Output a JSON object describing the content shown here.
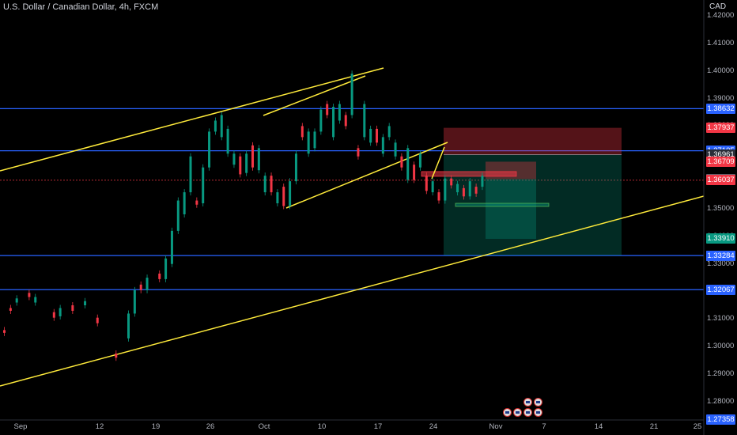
{
  "header": {
    "title": "U.S. Dollar / Canadian Dollar, 4h, FXCM",
    "currency": "CAD"
  },
  "chart_data": {
    "type": "candlestick",
    "ylim": [
      1.27,
      1.425
    ],
    "price_labels": [
      "1.42000",
      "1.41000",
      "1.40000",
      "1.39000",
      "1.38000",
      "1.37000",
      "1.36000",
      "1.35000",
      "1.34000",
      "1.33000",
      "1.32000",
      "1.31000",
      "1.30000",
      "1.29000",
      "1.28000"
    ],
    "date_labels": [
      "Sep",
      "12",
      "19",
      "26",
      "Oct",
      "10",
      "17",
      "24",
      "Nov",
      "7",
      "14",
      "21",
      "25"
    ],
    "horizontal_levels": [
      1.38632,
      1.37105,
      1.33303,
      1.32067
    ],
    "price_tags": [
      {
        "text": "1.38632",
        "color": "#2962ff"
      },
      {
        "text": "1.37937",
        "color": "#f23645"
      },
      {
        "text": "1.37105",
        "color": "#2962ff"
      },
      {
        "text": "1.36961",
        "color": "#2a2e39"
      },
      {
        "text": "1.36709",
        "color": "#f23645"
      },
      {
        "text": "1.36075",
        "color": "#5d606b"
      },
      {
        "text": "1.36037",
        "color": "#f23645"
      },
      {
        "text": "1.33910",
        "color": "#089981"
      },
      {
        "text": "1.33303",
        "color": "#2962ff"
      },
      {
        "text": "1.33284",
        "color": "#2962ff"
      },
      {
        "text": "1.32067",
        "color": "#2962ff"
      },
      {
        "text": "1.27358",
        "color": "#2962ff"
      }
    ],
    "colors": {
      "up": "#089981",
      "down": "#f23645",
      "level": "#2962ff",
      "trend": "#ffeb3b"
    },
    "candles_down": [
      [
        0,
        1.306,
        1.305
      ],
      [
        1,
        1.314,
        1.313
      ],
      [
        4,
        1.3195,
        1.318
      ],
      [
        8,
        1.3125,
        1.3105
      ],
      [
        11,
        1.315,
        1.313
      ],
      [
        15,
        1.3105,
        1.3085
      ],
      [
        18,
        1.2975,
        1.296
      ],
      [
        22,
        1.3225,
        1.3205
      ],
      [
        25,
        1.3265,
        1.3245
      ],
      [
        31,
        1.353,
        1.3515
      ],
      [
        38,
        1.369,
        1.3625
      ],
      [
        40,
        1.373,
        1.365
      ],
      [
        43,
        1.362,
        1.356
      ],
      [
        45,
        1.358,
        1.351
      ],
      [
        48,
        1.38,
        1.376
      ],
      [
        52,
        1.388,
        1.384
      ],
      [
        55,
        1.384,
        1.38
      ],
      [
        57,
        1.372,
        1.369
      ],
      [
        60,
        1.379,
        1.374
      ],
      [
        64,
        1.369,
        1.365
      ],
      [
        66,
        1.366,
        1.3605
      ],
      [
        68,
        1.362,
        1.3565
      ],
      [
        70,
        1.356,
        1.353
      ],
      [
        72,
        1.361,
        1.3585
      ],
      [
        74,
        1.3575,
        1.3545
      ],
      [
        76,
        1.358,
        1.3555
      ]
    ],
    "candles_up": [
      [
        2,
        1.316,
        1.3175
      ],
      [
        5,
        1.316,
        1.318
      ],
      [
        9,
        1.311,
        1.314
      ],
      [
        13,
        1.315,
        1.3165
      ],
      [
        20,
        1.303,
        1.312
      ],
      [
        21,
        1.312,
        1.3205
      ],
      [
        23,
        1.3205,
        1.325
      ],
      [
        26,
        1.3245,
        1.332
      ],
      [
        27,
        1.33,
        1.342
      ],
      [
        28,
        1.342,
        1.353
      ],
      [
        29,
        1.348,
        1.356
      ],
      [
        30,
        1.356,
        1.369
      ],
      [
        32,
        1.352,
        1.365
      ],
      [
        33,
        1.365,
        1.378
      ],
      [
        34,
        1.378,
        1.382
      ],
      [
        35,
        1.376,
        1.384
      ],
      [
        36,
        1.37,
        1.379
      ],
      [
        37,
        1.366,
        1.37
      ],
      [
        39,
        1.363,
        1.37
      ],
      [
        41,
        1.364,
        1.372
      ],
      [
        42,
        1.356,
        1.362
      ],
      [
        44,
        1.352,
        1.356
      ],
      [
        46,
        1.351,
        1.36
      ],
      [
        47,
        1.36,
        1.37
      ],
      [
        49,
        1.37,
        1.378
      ],
      [
        50,
        1.372,
        1.378
      ],
      [
        51,
        1.378,
        1.386
      ],
      [
        53,
        1.376,
        1.387
      ],
      [
        54,
        1.382,
        1.388
      ],
      [
        56,
        1.384,
        1.399
      ],
      [
        58,
        1.376,
        1.388
      ],
      [
        59,
        1.374,
        1.379
      ],
      [
        61,
        1.37,
        1.376
      ],
      [
        62,
        1.376,
        1.38
      ],
      [
        63,
        1.369,
        1.374
      ],
      [
        65,
        1.3605,
        1.372
      ],
      [
        67,
        1.365,
        1.37
      ],
      [
        69,
        1.356,
        1.36
      ],
      [
        71,
        1.353,
        1.361
      ],
      [
        73,
        1.356,
        1.359
      ],
      [
        75,
        1.3545,
        1.36
      ],
      [
        77,
        1.358,
        1.362
      ]
    ]
  },
  "events": {
    "row1": [
      "us-flag-icon",
      "us-flag-icon"
    ],
    "row2": [
      "us-flag-icon",
      "us-flag-icon",
      "us-flag-icon",
      "us-flag-icon"
    ]
  }
}
